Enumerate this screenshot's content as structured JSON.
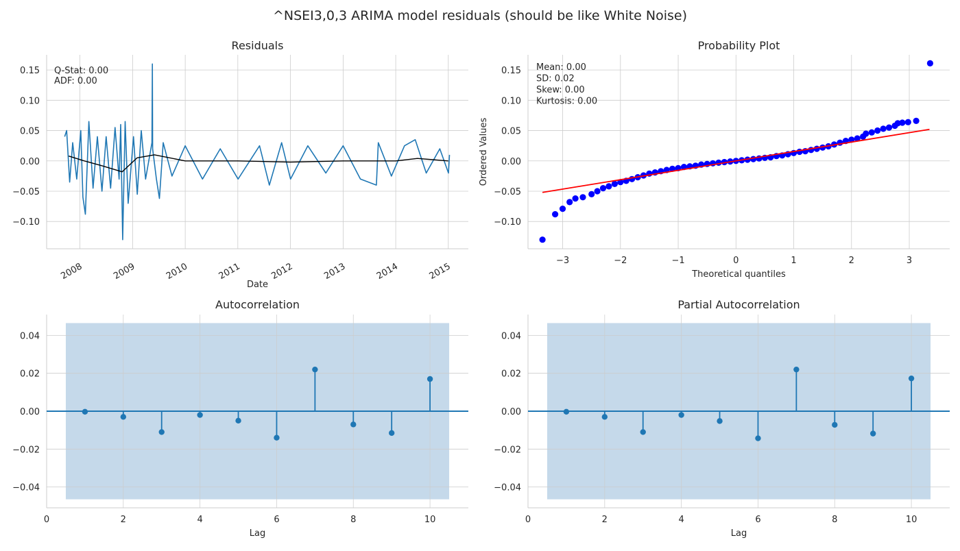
{
  "figure": {
    "suptitle": "^NSEI3,0,3 ARIMA model residuals (should be like White Noise)"
  },
  "chart_data": [
    {
      "id": "residuals",
      "type": "line",
      "title": "Residuals",
      "xlabel": "Date",
      "ylabel": "",
      "grid": true,
      "x_type": "date",
      "xlim": [
        "2007-05-15",
        "2015-05-20"
      ],
      "ylim": [
        -0.145,
        0.175
      ],
      "x_tick_labels": [
        "2008",
        "2009",
        "2010",
        "2011",
        "2012",
        "2013",
        "2014",
        "2015"
      ],
      "y_ticks": [
        -0.1,
        -0.05,
        0.0,
        0.05,
        0.1,
        0.15
      ],
      "y_tick_labels": [
        "−0.10",
        "−0.05",
        "0.00",
        "0.05",
        "0.10",
        "0.15"
      ],
      "annotations": [
        "Q-Stat:     0.00",
        "ADF:        0.00"
      ],
      "series": [
        {
          "role": "residuals",
          "color": "#1f77b4",
          "points": [
            [
              "2007-09-17",
              0.04
            ],
            [
              "2007-10-01",
              0.05
            ],
            [
              "2007-10-22",
              -0.035
            ],
            [
              "2007-11-12",
              0.03
            ],
            [
              "2007-12-10",
              -0.03
            ],
            [
              "2008-01-07",
              0.05
            ],
            [
              "2008-01-22",
              -0.06
            ],
            [
              "2008-02-08",
              -0.088
            ],
            [
              "2008-03-03",
              0.065
            ],
            [
              "2008-04-01",
              -0.045
            ],
            [
              "2008-05-01",
              0.04
            ],
            [
              "2008-06-02",
              -0.05
            ],
            [
              "2008-07-01",
              0.04
            ],
            [
              "2008-08-01",
              -0.045
            ],
            [
              "2008-09-01",
              0.055
            ],
            [
              "2008-09-29",
              -0.03
            ],
            [
              "2008-10-10",
              0.06
            ],
            [
              "2008-10-24",
              -0.13
            ],
            [
              "2008-11-10",
              0.065
            ],
            [
              "2008-12-01",
              -0.07
            ],
            [
              "2009-01-07",
              0.04
            ],
            [
              "2009-02-02",
              -0.055
            ],
            [
              "2009-03-02",
              0.05
            ],
            [
              "2009-04-01",
              -0.03
            ],
            [
              "2009-05-15",
              0.03
            ],
            [
              "2009-05-18",
              0.16
            ],
            [
              "2009-05-20",
              0.02
            ],
            [
              "2009-06-15",
              -0.03
            ],
            [
              "2009-07-06",
              -0.062
            ],
            [
              "2009-08-01",
              0.03
            ],
            [
              "2009-10-01",
              -0.025
            ],
            [
              "2010-01-01",
              0.025
            ],
            [
              "2010-05-01",
              -0.03
            ],
            [
              "2010-09-01",
              0.02
            ],
            [
              "2011-01-03",
              -0.03
            ],
            [
              "2011-06-01",
              0.025
            ],
            [
              "2011-08-08",
              -0.04
            ],
            [
              "2011-11-01",
              0.03
            ],
            [
              "2012-01-02",
              -0.03
            ],
            [
              "2012-05-01",
              0.025
            ],
            [
              "2012-09-03",
              -0.02
            ],
            [
              "2013-01-01",
              0.025
            ],
            [
              "2013-05-01",
              -0.03
            ],
            [
              "2013-08-20",
              -0.04
            ],
            [
              "2013-09-02",
              0.03
            ],
            [
              "2013-12-02",
              -0.025
            ],
            [
              "2014-03-03",
              0.025
            ],
            [
              "2014-05-16",
              0.035
            ],
            [
              "2014-08-01",
              -0.02
            ],
            [
              "2014-11-03",
              0.02
            ],
            [
              "2015-01-02",
              -0.02
            ],
            [
              "2015-01-09",
              0.01
            ]
          ]
        },
        {
          "role": "rolling mean",
          "color": "#000000",
          "points": [
            [
              "2007-10-15",
              0.008
            ],
            [
              "2008-02-01",
              0.0
            ],
            [
              "2008-06-01",
              -0.008
            ],
            [
              "2008-10-20",
              -0.018
            ],
            [
              "2009-02-01",
              0.005
            ],
            [
              "2009-06-01",
              0.01
            ],
            [
              "2010-01-01",
              0.0
            ],
            [
              "2011-01-01",
              0.0
            ],
            [
              "2012-01-01",
              -0.002
            ],
            [
              "2013-01-01",
              0.0
            ],
            [
              "2014-01-01",
              0.0
            ],
            [
              "2014-06-01",
              0.004
            ],
            [
              "2015-01-01",
              0.0
            ]
          ]
        }
      ]
    },
    {
      "id": "probplot",
      "type": "scatter",
      "title": "Probability Plot",
      "xlabel": "Theoretical quantiles",
      "ylabel": "Ordered Values",
      "grid": true,
      "xlim": [
        -3.6,
        3.7
      ],
      "ylim": [
        -0.145,
        0.175
      ],
      "x_ticks": [
        -3,
        -2,
        -1,
        0,
        1,
        2,
        3
      ],
      "x_tick_labels": [
        "−3",
        "−2",
        "−1",
        "0",
        "1",
        "2",
        "3"
      ],
      "y_ticks": [
        -0.1,
        -0.05,
        0.0,
        0.05,
        0.1,
        0.15
      ],
      "y_tick_labels": [
        "−0.10",
        "−0.05",
        "0.00",
        "0.05",
        "0.10",
        "0.15"
      ],
      "annotations": [
        "Mean:          0.00",
        "SD:              0.02",
        "Skew:          0.00",
        "Kurtosis:      0.00"
      ],
      "points_color": "#0000ff",
      "line_color": "#ff0000",
      "fit_line": [
        [
          -3.35,
          -0.052
        ],
        [
          3.35,
          0.052
        ]
      ],
      "quantiles": [
        [
          -3.35,
          -0.13
        ],
        [
          -3.13,
          -0.088
        ],
        [
          -3.0,
          -0.079
        ],
        [
          -2.88,
          -0.068
        ],
        [
          -2.78,
          -0.062
        ],
        [
          -2.65,
          -0.06
        ],
        [
          -2.5,
          -0.055
        ],
        [
          -2.4,
          -0.05
        ],
        [
          -2.3,
          -0.045
        ],
        [
          -2.2,
          -0.042
        ],
        [
          -2.1,
          -0.038
        ],
        [
          -2.0,
          -0.035
        ],
        [
          -1.9,
          -0.033
        ],
        [
          -1.8,
          -0.03
        ],
        [
          -1.7,
          -0.027
        ],
        [
          -1.6,
          -0.024
        ],
        [
          -1.5,
          -0.021
        ],
        [
          -1.4,
          -0.019
        ],
        [
          -1.3,
          -0.017
        ],
        [
          -1.2,
          -0.015
        ],
        [
          -1.1,
          -0.013
        ],
        [
          -1.0,
          -0.012
        ],
        [
          -0.9,
          -0.01
        ],
        [
          -0.8,
          -0.009
        ],
        [
          -0.7,
          -0.008
        ],
        [
          -0.6,
          -0.006
        ],
        [
          -0.5,
          -0.005
        ],
        [
          -0.4,
          -0.004
        ],
        [
          -0.3,
          -0.003
        ],
        [
          -0.2,
          -0.002
        ],
        [
          -0.1,
          -0.001
        ],
        [
          0.0,
          0.0
        ],
        [
          0.1,
          0.001
        ],
        [
          0.2,
          0.002
        ],
        [
          0.3,
          0.003
        ],
        [
          0.4,
          0.004
        ],
        [
          0.5,
          0.005
        ],
        [
          0.6,
          0.006
        ],
        [
          0.7,
          0.008
        ],
        [
          0.8,
          0.009
        ],
        [
          0.9,
          0.011
        ],
        [
          1.0,
          0.013
        ],
        [
          1.1,
          0.015
        ],
        [
          1.2,
          0.016
        ],
        [
          1.3,
          0.018
        ],
        [
          1.4,
          0.02
        ],
        [
          1.5,
          0.022
        ],
        [
          1.6,
          0.024
        ],
        [
          1.7,
          0.027
        ],
        [
          1.8,
          0.03
        ],
        [
          1.9,
          0.033
        ],
        [
          2.0,
          0.035
        ],
        [
          2.1,
          0.037
        ],
        [
          2.2,
          0.04
        ],
        [
          2.25,
          0.045
        ],
        [
          2.35,
          0.047
        ],
        [
          2.45,
          0.05
        ],
        [
          2.55,
          0.053
        ],
        [
          2.65,
          0.055
        ],
        [
          2.75,
          0.058
        ],
        [
          2.8,
          0.062
        ],
        [
          2.88,
          0.063
        ],
        [
          2.98,
          0.064
        ],
        [
          3.12,
          0.066
        ],
        [
          3.36,
          0.161
        ]
      ]
    },
    {
      "id": "acf",
      "type": "stem",
      "title": "Autocorrelation",
      "xlabel": "Lag",
      "ylabel": "",
      "grid": true,
      "xlim": [
        0,
        11
      ],
      "ylim": [
        -0.051,
        0.051
      ],
      "x_ticks": [
        0,
        2,
        4,
        6,
        8,
        10
      ],
      "y_ticks": [
        -0.04,
        -0.02,
        0.0,
        0.02,
        0.04
      ],
      "y_tick_labels": [
        "−0.04",
        "−0.02",
        "0.00",
        "0.02",
        "0.04"
      ],
      "confidence_band": {
        "x": [
          0.5,
          10.5
        ],
        "lower": -0.0465,
        "upper": 0.0465,
        "color": "#c5d9ea"
      },
      "color": "#1f77b4",
      "lags": [
        1,
        2,
        3,
        4,
        5,
        6,
        7,
        8,
        9,
        10
      ],
      "values": [
        -0.0003,
        -0.003,
        -0.011,
        -0.002,
        -0.005,
        -0.014,
        0.022,
        -0.007,
        -0.0115,
        0.017
      ]
    },
    {
      "id": "pacf",
      "type": "stem",
      "title": "Partial Autocorrelation",
      "xlabel": "Lag",
      "ylabel": "",
      "grid": true,
      "xlim": [
        0,
        11
      ],
      "ylim": [
        -0.051,
        0.051
      ],
      "x_ticks": [
        0,
        2,
        4,
        6,
        8,
        10
      ],
      "y_ticks": [
        -0.04,
        -0.02,
        0.0,
        0.02,
        0.04
      ],
      "y_tick_labels": [
        "−0.04",
        "−0.02",
        "0.00",
        "0.02",
        "0.04"
      ],
      "confidence_band": {
        "x": [
          0.5,
          10.5
        ],
        "lower": -0.0465,
        "upper": 0.0465,
        "color": "#c5d9ea"
      },
      "color": "#1f77b4",
      "lags": [
        1,
        2,
        3,
        4,
        5,
        6,
        7,
        8,
        9,
        10
      ],
      "values": [
        -0.0003,
        -0.003,
        -0.011,
        -0.002,
        -0.0052,
        -0.0143,
        0.022,
        -0.0072,
        -0.0118,
        0.0173
      ]
    }
  ]
}
